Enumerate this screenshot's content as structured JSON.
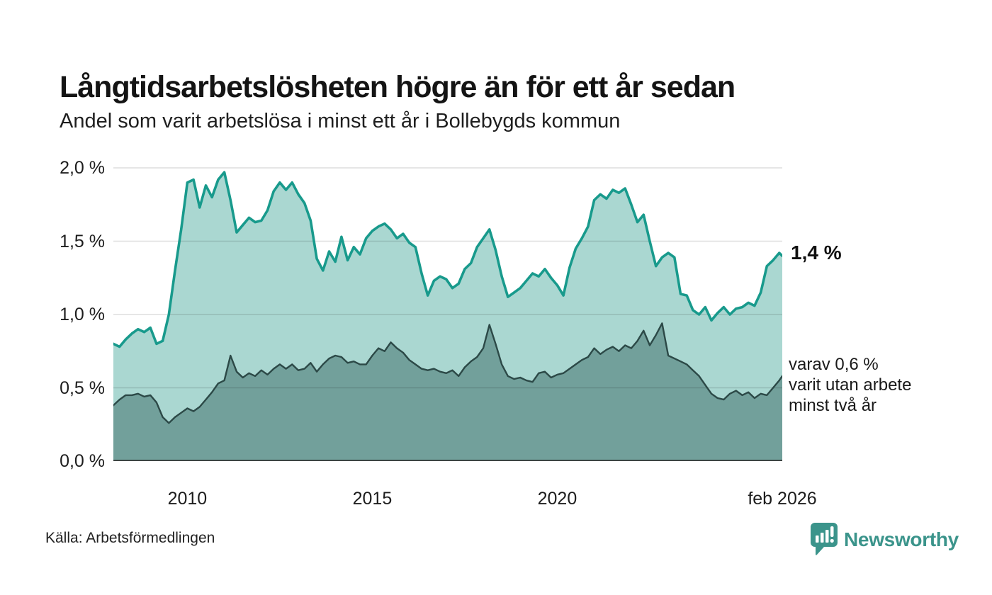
{
  "header": {
    "title": "Långtidsarbetslösheten högre än för ett år sedan",
    "subtitle": "Andel som varit arbetslösa i minst ett år i Bollebygds kommun"
  },
  "annotations": {
    "latest_value": "1,4 %",
    "secondary_line1": "varav 0,6 %",
    "secondary_line2": "varit utan arbete",
    "secondary_line3": "minst två år"
  },
  "footer": {
    "source": "Källa: Arbetsförmedlingen",
    "brand": "Newsworthy"
  },
  "colors": {
    "series1_line": "#189a8c",
    "series1_fill": "#aad7d1",
    "series2_line": "#2c4947",
    "series2_fill": "#72a09b",
    "gridline": "rgba(0,0,0,0.13)",
    "axis": "#3c4543",
    "brand_teal": "#3b948b"
  },
  "chart_data": {
    "type": "area",
    "title": "Andel som varit arbetslösa i minst ett år i Bollebygds kommun",
    "x_domain": [
      2008.0,
      2026.083
    ],
    "x_step_years": 0.1666667,
    "ylim": [
      0,
      2.058
    ],
    "grid": true,
    "y_ticks": [
      {
        "label": "2,0 %",
        "value": 2.0
      },
      {
        "label": "1,5 %",
        "value": 1.5
      },
      {
        "label": "1,0 %",
        "value": 1.0
      },
      {
        "label": "0,5 %",
        "value": 0.5
      },
      {
        "label": "0,0 %",
        "value": 0.0
      }
    ],
    "x_ticks": [
      {
        "label": "2010",
        "year": 2010
      },
      {
        "label": "2015",
        "year": 2015
      },
      {
        "label": "2020",
        "year": 2020
      },
      {
        "label": "feb 2026",
        "year": 2026.083
      }
    ],
    "series": [
      {
        "name": "Arbetslösa minst ett år",
        "end_label": "1,4 %",
        "values": [
          0.8,
          0.78,
          0.83,
          0.87,
          0.9,
          0.88,
          0.91,
          0.8,
          0.82,
          1.0,
          1.3,
          1.58,
          1.9,
          1.92,
          1.73,
          1.88,
          1.8,
          1.92,
          1.97,
          1.78,
          1.56,
          1.61,
          1.66,
          1.63,
          1.64,
          1.71,
          1.84,
          1.9,
          1.85,
          1.9,
          1.82,
          1.76,
          1.64,
          1.38,
          1.3,
          1.43,
          1.36,
          1.53,
          1.37,
          1.46,
          1.41,
          1.52,
          1.57,
          1.6,
          1.62,
          1.58,
          1.52,
          1.55,
          1.49,
          1.46,
          1.28,
          1.13,
          1.23,
          1.26,
          1.24,
          1.18,
          1.21,
          1.31,
          1.35,
          1.46,
          1.52,
          1.58,
          1.44,
          1.26,
          1.12,
          1.15,
          1.18,
          1.23,
          1.28,
          1.26,
          1.31,
          1.25,
          1.2,
          1.13,
          1.32,
          1.45,
          1.52,
          1.6,
          1.78,
          1.82,
          1.79,
          1.85,
          1.83,
          1.86,
          1.75,
          1.63,
          1.68,
          1.5,
          1.33,
          1.39,
          1.42,
          1.39,
          1.14,
          1.13,
          1.03,
          1.0,
          1.05,
          0.96,
          1.01,
          1.05,
          1.0,
          1.04,
          1.05,
          1.08,
          1.06,
          1.15,
          1.33,
          1.37,
          1.42,
          1.4
        ]
      },
      {
        "name": "Arbetslösa minst två år",
        "end_label": "varav 0,6 % varit utan arbete minst två år",
        "values": [
          0.38,
          0.42,
          0.45,
          0.45,
          0.46,
          0.44,
          0.45,
          0.4,
          0.3,
          0.26,
          0.3,
          0.33,
          0.36,
          0.34,
          0.37,
          0.42,
          0.47,
          0.53,
          0.55,
          0.72,
          0.61,
          0.57,
          0.6,
          0.58,
          0.62,
          0.59,
          0.63,
          0.66,
          0.63,
          0.66,
          0.62,
          0.63,
          0.67,
          0.61,
          0.66,
          0.7,
          0.72,
          0.71,
          0.67,
          0.68,
          0.66,
          0.66,
          0.72,
          0.77,
          0.75,
          0.81,
          0.77,
          0.74,
          0.69,
          0.66,
          0.63,
          0.62,
          0.63,
          0.61,
          0.6,
          0.62,
          0.58,
          0.64,
          0.68,
          0.71,
          0.77,
          0.93,
          0.8,
          0.66,
          0.58,
          0.56,
          0.57,
          0.55,
          0.54,
          0.6,
          0.61,
          0.57,
          0.59,
          0.6,
          0.63,
          0.66,
          0.69,
          0.71,
          0.77,
          0.73,
          0.76,
          0.78,
          0.75,
          0.79,
          0.77,
          0.82,
          0.89,
          0.79,
          0.86,
          0.94,
          0.72,
          0.7,
          0.68,
          0.66,
          0.62,
          0.58,
          0.52,
          0.46,
          0.43,
          0.42,
          0.46,
          0.48,
          0.45,
          0.47,
          0.43,
          0.46,
          0.45,
          0.5,
          0.55,
          0.58
        ]
      }
    ]
  }
}
